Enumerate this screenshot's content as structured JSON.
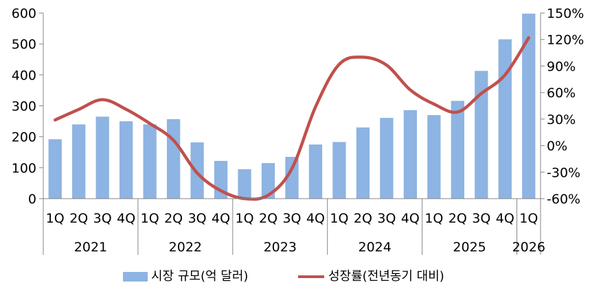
{
  "chart_data": {
    "type": "bar+line",
    "categories": [
      "1Q",
      "2Q",
      "3Q",
      "4Q",
      "1Q",
      "2Q",
      "3Q",
      "4Q",
      "1Q",
      "2Q",
      "3Q",
      "4Q",
      "1Q",
      "2Q",
      "3Q",
      "4Q",
      "1Q",
      "2Q",
      "3Q",
      "4Q",
      "1Q"
    ],
    "years": [
      {
        "label": "2021",
        "start": 0,
        "count": 4
      },
      {
        "label": "2022",
        "start": 4,
        "count": 4
      },
      {
        "label": "2023",
        "start": 8,
        "count": 4
      },
      {
        "label": "2024",
        "start": 12,
        "count": 4
      },
      {
        "label": "2025",
        "start": 16,
        "count": 4
      },
      {
        "label": "2026",
        "start": 20,
        "count": 1
      }
    ],
    "series": [
      {
        "name": "시장 규모(억 달러)",
        "type": "bar",
        "axis": "left",
        "color": "#8DB4E2",
        "values": [
          192,
          240,
          265,
          250,
          240,
          257,
          182,
          122,
          95,
          115,
          135,
          175,
          183,
          230,
          261,
          286,
          270,
          316,
          413,
          515,
          598
        ]
      },
      {
        "name": "성장률(전년동기 대비)",
        "type": "line",
        "axis": "right",
        "color": "#C0504D",
        "values": [
          29,
          41,
          52,
          41,
          25,
          6,
          -31,
          -51,
          -60,
          -56,
          -26,
          44,
          92,
          100,
          91,
          63,
          47,
          38,
          59,
          80,
          122
        ]
      }
    ],
    "y_left": {
      "min": 0,
      "max": 600,
      "ticks": [
        0,
        100,
        200,
        300,
        400,
        500,
        600
      ]
    },
    "y_right": {
      "min": -60,
      "max": 150,
      "ticks": [
        "-60%",
        "-30%",
        "0%",
        "30%",
        "60%",
        "90%",
        "120%",
        "150%"
      ],
      "tick_values": [
        -60,
        -30,
        0,
        30,
        60,
        90,
        120,
        150
      ]
    },
    "legend_position": "bottom",
    "grid": false
  }
}
